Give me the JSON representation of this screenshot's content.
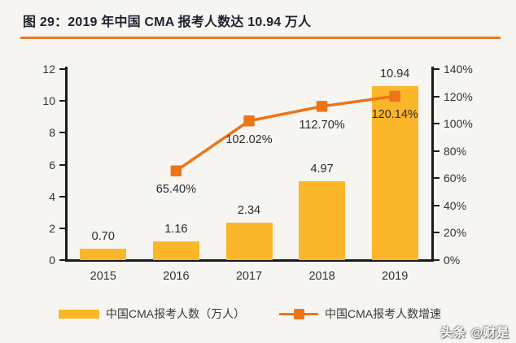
{
  "title": "图 29：2019 年中国 CMA 报考人数达 10.94 万人",
  "watermark": "头条 @财是",
  "colors": {
    "bar": "#FBB629",
    "line": "#EE7418",
    "underline": "#E87A22",
    "axis": "#1A1A1A",
    "background": "#F6F5F2",
    "title": "#1C222E"
  },
  "chart_data": {
    "type": "bar",
    "subtype": "bar+line-combo",
    "categories": [
      "2015",
      "2016",
      "2017",
      "2018",
      "2019"
    ],
    "series": [
      {
        "name": "中国CMA报考人数（万人）",
        "type": "bar",
        "axis": "left",
        "values": [
          0.7,
          1.16,
          2.34,
          4.97,
          10.94
        ],
        "labels": [
          "0.70",
          "1.16",
          "2.34",
          "4.97",
          "10.94"
        ],
        "color": "#FBB629"
      },
      {
        "name": "中国CMA报考人数增速",
        "type": "line",
        "axis": "right",
        "values": [
          null,
          65.4,
          102.02,
          112.7,
          120.14
        ],
        "labels": [
          null,
          "65.40%",
          "102.02%",
          "112.70%",
          "120.14%"
        ],
        "color": "#EE7418"
      }
    ],
    "left_axis": {
      "min": 0,
      "max": 12,
      "step": 2,
      "ticks": [
        "0",
        "2",
        "4",
        "6",
        "8",
        "10",
        "12"
      ]
    },
    "right_axis": {
      "min": 0,
      "max": 140,
      "step": 20,
      "ticks": [
        "0%",
        "20%",
        "40%",
        "60%",
        "80%",
        "100%",
        "120%",
        "140%"
      ]
    },
    "grid": false,
    "legend_position": "bottom"
  }
}
